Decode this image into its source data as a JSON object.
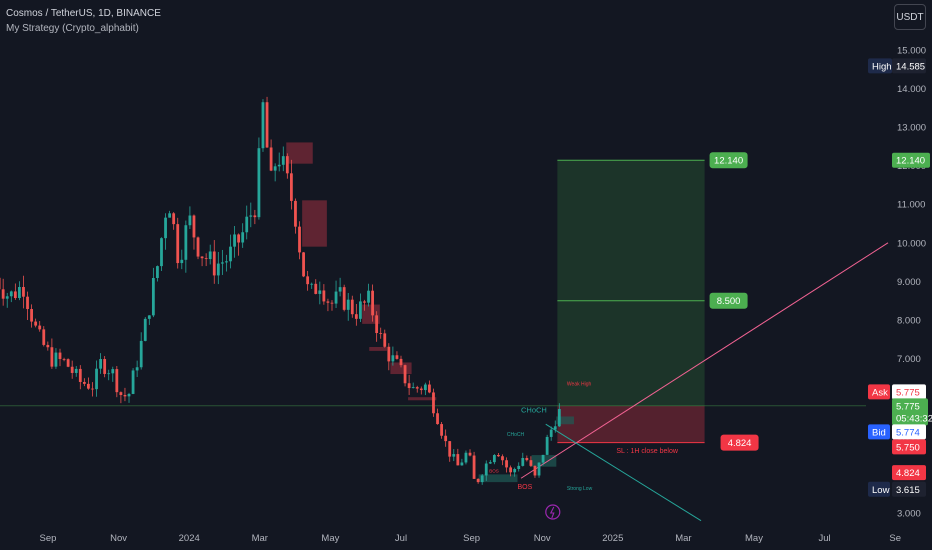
{
  "header": {
    "symbol_line": "Cosmos / TetherUS, 1D, BINANCE",
    "strategy_line": "My Strategy (Crypto_alphabit)"
  },
  "currency_button": "USDT",
  "colors": {
    "background": "#131722",
    "bull": "#26a69a",
    "bear": "#ef5350",
    "green_zone": "#1e3a2a",
    "red_zone": "#5c2230",
    "price_up": "#4caf50",
    "price_down": "#f23645",
    "ask_label": "#f23645",
    "bid_label": "#2962ff",
    "hi_lo_label": "#1e2a4a"
  },
  "price_labels": {
    "high_tag": "High",
    "high_value": "14.585",
    "low_tag": "Low",
    "low_value": "3.615",
    "ask_tag": "Ask",
    "ask_value": "5.775",
    "last_value": "5.775",
    "countdown": "05:43:32",
    "bid_tag": "Bid",
    "bid_value": "5.774",
    "open_value": "5.750",
    "stop_value": "4.824",
    "tp_value": "12.140"
  },
  "annotations": {
    "tp1": "12.140",
    "tp2": "8.500",
    "sl": "4.824",
    "sl_note": "SL : 1H close below",
    "choch": "CHoCH",
    "choch_small": "CHoCH",
    "bos": "BOS",
    "bos_small": "BOS",
    "weak_high": "Weak High",
    "strong_low": "Strong Low"
  },
  "chart_data": {
    "type": "candlestick",
    "title": "Cosmos / TetherUS, 1D, BINANCE",
    "x_tick_labels": [
      "Sep",
      "Nov",
      "2024",
      "Mar",
      "May",
      "Jul",
      "Sep",
      "Nov",
      "2025",
      "Mar",
      "May",
      "Jul",
      "Se"
    ],
    "y_tick_labels": [
      "3.000",
      "4.000",
      "5.000",
      "6.000",
      "7.000",
      "8.000",
      "9.000",
      "10.000",
      "11.000",
      "12.000",
      "13.000",
      "14.000",
      "15.000"
    ],
    "ylim": [
      3.0,
      15.0
    ],
    "x_unit": "month_index_from_Jul_2023",
    "x_range": [
      0,
      26.2
    ],
    "close_path": [
      {
        "x": 0.0,
        "y": 9.1
      },
      {
        "x": 0.4,
        "y": 8.6
      },
      {
        "x": 0.8,
        "y": 8.9
      },
      {
        "x": 1.2,
        "y": 7.6
      },
      {
        "x": 1.6,
        "y": 7.0
      },
      {
        "x": 2.0,
        "y": 6.9
      },
      {
        "x": 2.4,
        "y": 6.4
      },
      {
        "x": 2.8,
        "y": 6.3
      },
      {
        "x": 3.0,
        "y": 6.9
      },
      {
        "x": 3.3,
        "y": 6.7
      },
      {
        "x": 3.6,
        "y": 6.0
      },
      {
        "x": 3.8,
        "y": 6.1
      },
      {
        "x": 4.2,
        "y": 7.6
      },
      {
        "x": 4.6,
        "y": 9.4
      },
      {
        "x": 4.9,
        "y": 11.3
      },
      {
        "x": 5.2,
        "y": 9.6
      },
      {
        "x": 5.5,
        "y": 10.6
      },
      {
        "x": 5.8,
        "y": 9.8
      },
      {
        "x": 6.2,
        "y": 9.4
      },
      {
        "x": 6.6,
        "y": 9.6
      },
      {
        "x": 7.0,
        "y": 10.2
      },
      {
        "x": 7.4,
        "y": 11.1
      },
      {
        "x": 7.6,
        "y": 13.6
      },
      {
        "x": 7.8,
        "y": 11.4
      },
      {
        "x": 8.0,
        "y": 12.4
      },
      {
        "x": 8.2,
        "y": 11.8
      },
      {
        "x": 8.5,
        "y": 10.8
      },
      {
        "x": 8.7,
        "y": 9.4
      },
      {
        "x": 8.9,
        "y": 8.6
      },
      {
        "x": 9.2,
        "y": 9.0
      },
      {
        "x": 9.5,
        "y": 8.4
      },
      {
        "x": 9.8,
        "y": 8.6
      },
      {
        "x": 10.2,
        "y": 8.2
      },
      {
        "x": 10.6,
        "y": 8.5
      },
      {
        "x": 11.0,
        "y": 7.3
      },
      {
        "x": 11.4,
        "y": 6.8
      },
      {
        "x": 11.8,
        "y": 6.2
      },
      {
        "x": 12.2,
        "y": 6.3
      },
      {
        "x": 12.5,
        "y": 5.6
      },
      {
        "x": 12.8,
        "y": 4.7
      },
      {
        "x": 13.1,
        "y": 4.2
      },
      {
        "x": 13.4,
        "y": 4.6
      },
      {
        "x": 13.6,
        "y": 3.7
      },
      {
        "x": 13.8,
        "y": 4.1
      },
      {
        "x": 14.2,
        "y": 4.7
      },
      {
        "x": 14.6,
        "y": 4.0
      },
      {
        "x": 15.0,
        "y": 4.5
      },
      {
        "x": 15.3,
        "y": 3.9
      },
      {
        "x": 15.6,
        "y": 4.8
      },
      {
        "x": 15.9,
        "y": 5.5
      },
      {
        "x": 16.1,
        "y": 5.77
      }
    ],
    "all_time_in_view_high": 14.585,
    "all_time_in_view_low": 3.615,
    "last_price": 5.775,
    "trade_setup": {
      "entry": 5.775,
      "stop_loss": 4.824,
      "take_profit_1": 8.5,
      "take_profit_2": 12.14
    },
    "grid": false
  }
}
